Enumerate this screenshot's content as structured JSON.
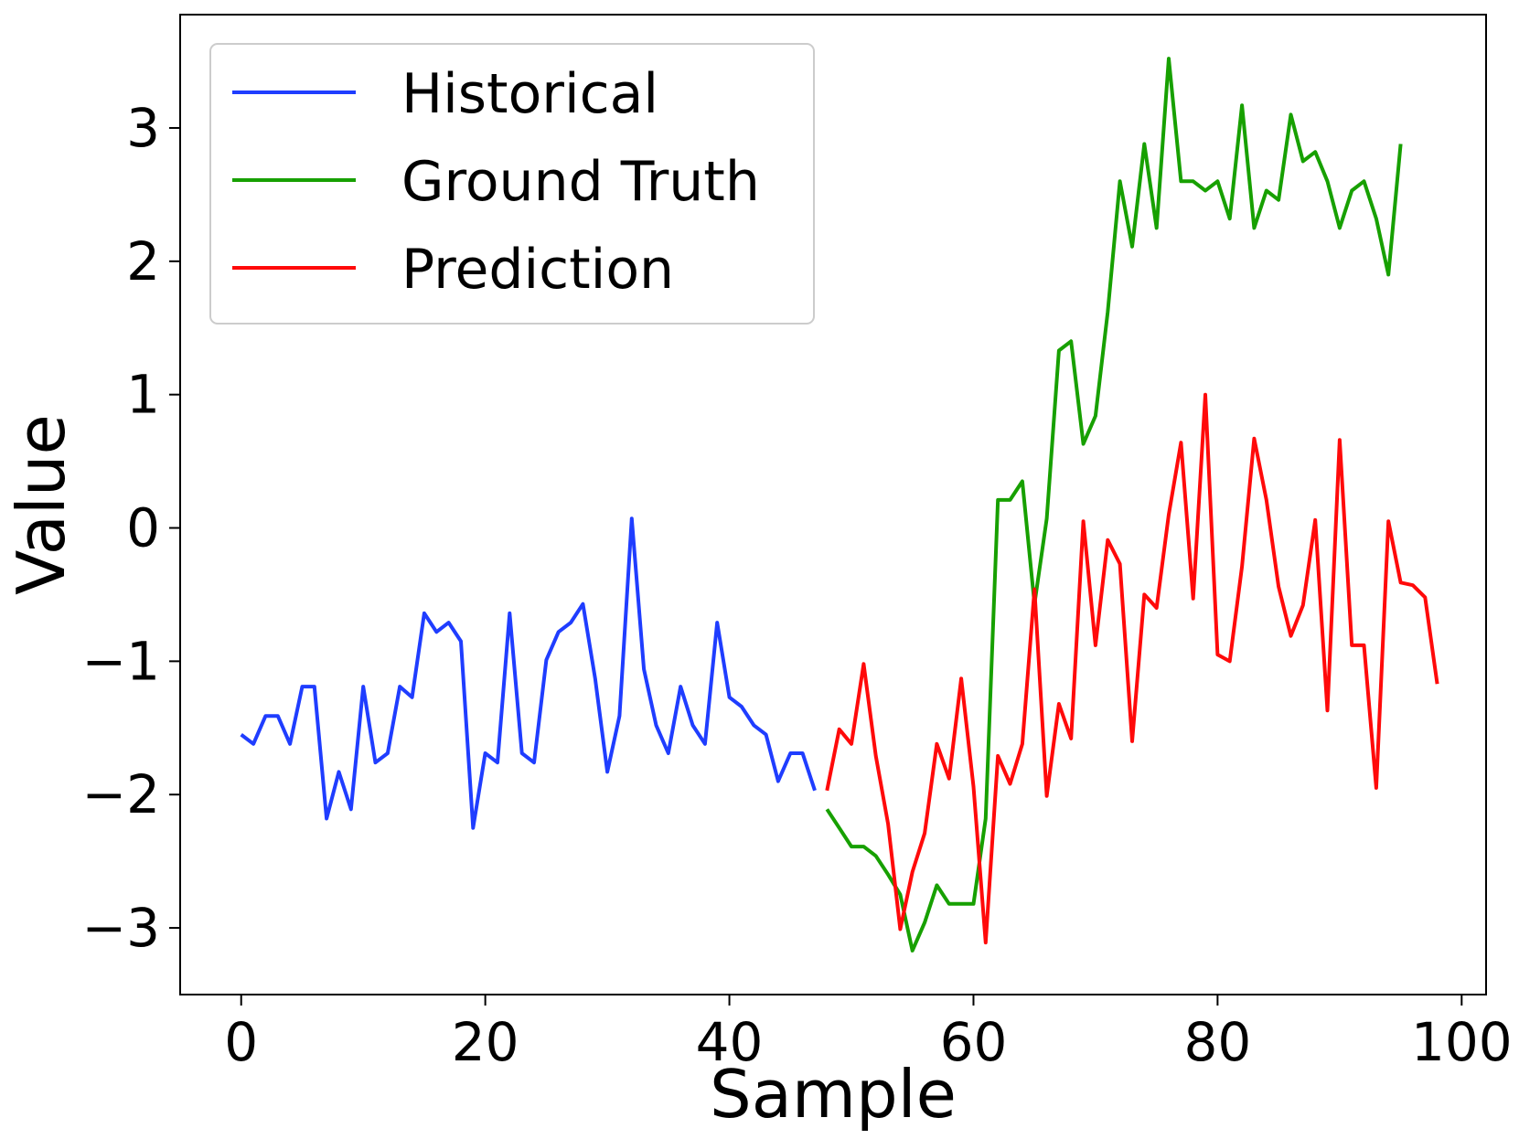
{
  "chart_data": {
    "type": "line",
    "xlabel": "Sample",
    "ylabel": "Value",
    "xlim": [
      -5,
      102
    ],
    "ylim": [
      -3.5,
      3.85
    ],
    "x_ticks": [
      0,
      20,
      40,
      60,
      80,
      100
    ],
    "y_ticks": [
      -3,
      -2,
      -1,
      0,
      1,
      2,
      3
    ],
    "y_tick_labels": [
      "−3",
      "−2",
      "−1",
      "0",
      "1",
      "2",
      "3"
    ],
    "grid": false,
    "legend_position": "top-left",
    "series": [
      {
        "name": "Historical",
        "color": "#1f3dff",
        "x_start": 0,
        "values": [
          -1.55,
          -1.62,
          -1.41,
          -1.41,
          -1.62,
          -1.19,
          -1.19,
          -2.18,
          -1.83,
          -2.11,
          -1.19,
          -1.76,
          -1.69,
          -1.19,
          -1.27,
          -0.64,
          -0.78,
          -0.71,
          -0.85,
          -2.25,
          -1.69,
          -1.76,
          -0.64,
          -1.69,
          -1.76,
          -0.99,
          -0.78,
          -0.71,
          -0.57,
          -1.13,
          -1.83,
          -1.41,
          0.07,
          -1.06,
          -1.48,
          -1.69,
          -1.19,
          -1.48,
          -1.62,
          -0.71,
          -1.27,
          -1.34,
          -1.48,
          -1.55,
          -1.9,
          -1.69,
          -1.69,
          -1.97
        ]
      },
      {
        "name": "Ground Truth",
        "color": "#17a000",
        "x_start": 48,
        "values": [
          -2.11,
          -2.25,
          -2.39,
          -2.39,
          -2.46,
          -2.6,
          -2.75,
          -3.17,
          -2.96,
          -2.68,
          -2.82,
          -2.82,
          -2.82,
          -2.18,
          0.21,
          0.21,
          0.35,
          -0.57,
          0.07,
          1.33,
          1.4,
          0.63,
          0.84,
          1.62,
          2.6,
          2.11,
          2.88,
          2.25,
          3.52,
          2.6,
          2.6,
          2.53,
          2.6,
          2.32,
          3.17,
          2.25,
          2.53,
          2.46,
          3.1,
          2.75,
          2.82,
          2.6,
          2.25,
          2.53,
          2.6,
          2.32,
          1.9,
          2.88
        ]
      },
      {
        "name": "Prediction",
        "color": "#ff0a0a",
        "x_start": 48,
        "values": [
          -1.97,
          -1.51,
          -1.62,
          -1.02,
          -1.71,
          -2.22,
          -3.01,
          -2.58,
          -2.29,
          -1.62,
          -1.88,
          -1.13,
          -1.94,
          -3.11,
          -1.71,
          -1.92,
          -1.62,
          -0.46,
          -2.01,
          -1.32,
          -1.58,
          0.05,
          -0.88,
          -0.09,
          -0.27,
          -1.6,
          -0.5,
          -0.6,
          0.1,
          0.64,
          -0.53,
          1.0,
          -0.95,
          -1.0,
          -0.29,
          0.67,
          0.21,
          -0.44,
          -0.81,
          -0.58,
          0.06,
          -1.37,
          0.66,
          -0.88,
          -0.88,
          -1.95,
          0.05,
          -0.41,
          -0.43,
          -0.52,
          -1.17
        ]
      }
    ]
  }
}
